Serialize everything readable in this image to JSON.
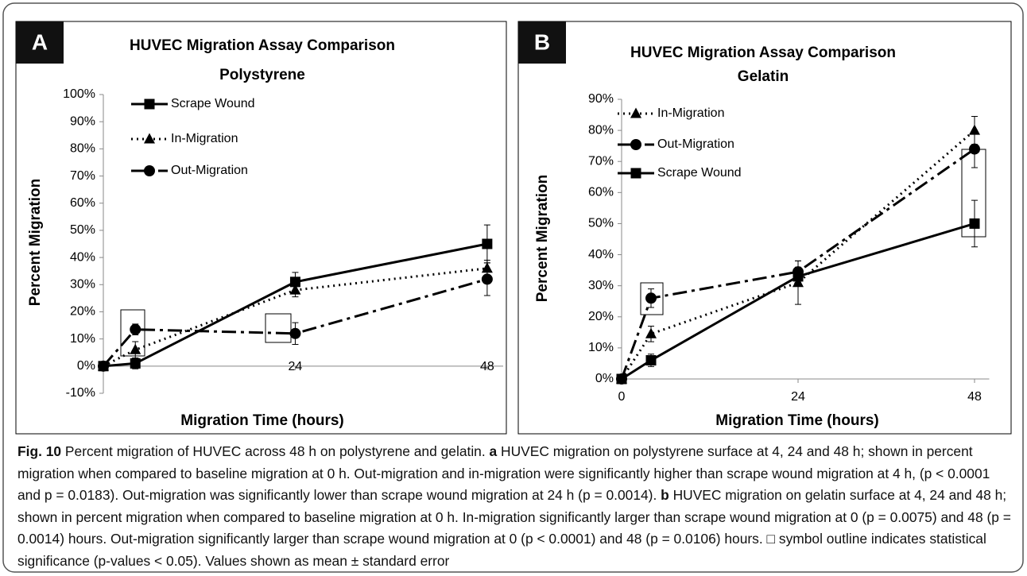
{
  "chart_data": [
    {
      "type": "line",
      "panel": "A",
      "title": "HUVEC Migration Assay Comparison",
      "subtitle": "Polystyrene",
      "x_label": "Migration Time (hours)",
      "y_label": "Percent Migration",
      "x": [
        0,
        4,
        24,
        48
      ],
      "xlim": [
        0,
        50
      ],
      "xticks": [
        0,
        24,
        48
      ],
      "ylim": [
        -10,
        100
      ],
      "yticks": [
        {
          "value": -10,
          "label": "-10%"
        },
        {
          "value": 0,
          "label": "0%"
        },
        {
          "value": 10,
          "label": "10%"
        },
        {
          "value": 20,
          "label": "20%"
        },
        {
          "value": 30,
          "label": "30%"
        },
        {
          "value": 40,
          "label": "40%"
        },
        {
          "value": 50,
          "label": "50%"
        },
        {
          "value": 60,
          "label": "60%"
        },
        {
          "value": 70,
          "label": "70%"
        },
        {
          "value": 80,
          "label": "80%"
        },
        {
          "value": 90,
          "label": "90%"
        },
        {
          "value": 100,
          "label": "100%"
        }
      ],
      "series": [
        {
          "name": "Scrape Wound",
          "color": "#000000",
          "dash": "solid",
          "marker": "square",
          "values": [
            0,
            1,
            31,
            45
          ],
          "errors": [
            0,
            2,
            3.5,
            7
          ]
        },
        {
          "name": "In-Migration",
          "color": "#000000",
          "dash": "dotted",
          "marker": "triangle",
          "values": [
            0,
            6,
            28,
            36
          ],
          "errors": [
            0,
            3,
            2.5,
            3
          ]
        },
        {
          "name": "Out-Migration",
          "color": "#000000",
          "dash": "dashdot",
          "marker": "circle",
          "values": [
            0,
            13.5,
            12,
            32
          ],
          "errors": [
            0,
            2,
            4,
            6
          ]
        }
      ]
    },
    {
      "type": "line",
      "panel": "B",
      "title": "HUVEC Migration Assay Comparison",
      "subtitle": "Gelatin",
      "x_label": "Migration Time (hours)",
      "y_label": "Percent Migration",
      "x": [
        0,
        4,
        24,
        48
      ],
      "xlim": [
        0,
        50
      ],
      "xticks": [
        0,
        24,
        48
      ],
      "ylim": [
        0,
        90
      ],
      "yticks": [
        {
          "value": 0,
          "label": "0%"
        },
        {
          "value": 10,
          "label": "10%"
        },
        {
          "value": 20,
          "label": "20%"
        },
        {
          "value": 30,
          "label": "30%"
        },
        {
          "value": 40,
          "label": "40%"
        },
        {
          "value": 50,
          "label": "50%"
        },
        {
          "value": 60,
          "label": "60%"
        },
        {
          "value": 70,
          "label": "70%"
        },
        {
          "value": 80,
          "label": "80%"
        },
        {
          "value": 90,
          "label": "90%"
        }
      ],
      "series": [
        {
          "name": "In-Migration",
          "color": "#000000",
          "dash": "dotted",
          "marker": "triangle",
          "values": [
            0,
            14.5,
            31,
            80
          ],
          "errors": [
            0,
            2.5,
            7,
            4.5
          ]
        },
        {
          "name": "Out-Migration",
          "color": "#000000",
          "dash": "dashdot",
          "marker": "circle",
          "values": [
            0,
            26,
            34.5,
            74
          ],
          "errors": [
            0,
            3,
            3.5,
            6
          ]
        },
        {
          "name": "Scrape Wound",
          "color": "#000000",
          "dash": "solid",
          "marker": "square",
          "values": [
            0,
            6,
            33,
            50
          ],
          "errors": [
            0,
            2,
            3,
            7.5
          ]
        }
      ]
    }
  ],
  "caption": [
    {
      "text": "Fig. 10",
      "bold": true
    },
    {
      "text": " Percent migration of HUVEC across 48 h on polystyrene and gelatin. "
    },
    {
      "text": "a",
      "bold": true
    },
    {
      "text": " HUVEC migration on polystyrene surface at 4, 24 and 48 h; shown in percent migration when compared to baseline migration at 0 h. Out-migration and in-migration were significantly higher than scrape wound migration at 4 h, (p < 0.0001 and p = 0.0183). Out-migration was significantly lower than scrape wound migration at 24 h (p = 0.0014). "
    },
    {
      "text": "b",
      "bold": true
    },
    {
      "text": " HUVEC migration on gelatin surface at 4, 24 and 48 h; shown in percent migration when compared to baseline migration at 0 h. In-migration significantly larger than scrape wound migration at 0 (p = 0.0075) and 48 (p = 0.0014) hours. Out-migration significantly larger than scrape wound migration at 0 (p < 0.0001) and 48 (p = 0.0106) hours. □ symbol outline indicates statistical significance (p-values < 0.05). Values shown as mean ± standard error"
    }
  ]
}
